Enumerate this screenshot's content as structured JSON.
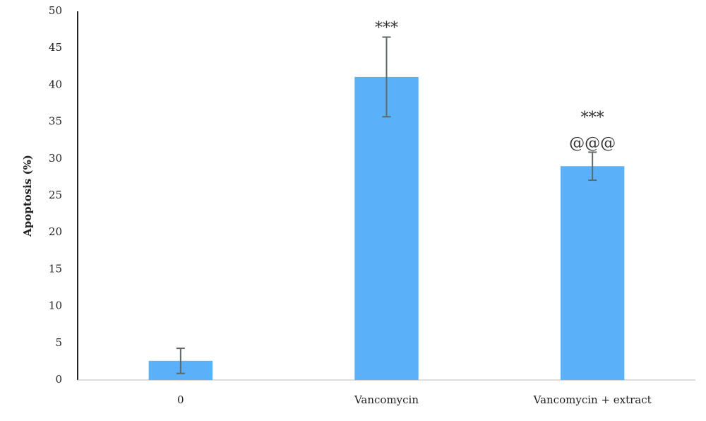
{
  "chart_data": {
    "type": "bar",
    "y_label": "Apoptosis (%)",
    "categories": [
      "0",
      "Vancomycin",
      "Vancomycin + extract"
    ],
    "values": [
      2.6,
      41.1,
      29.0
    ],
    "errors": [
      1.7,
      5.4,
      1.9
    ],
    "annotations": [
      [],
      [
        "***"
      ],
      [
        "***",
        "@@@"
      ]
    ],
    "color": "#5ab1f9",
    "error_color": "#5f6b66",
    "ylim": [
      0,
      50
    ],
    "yticks": [
      0,
      5,
      10,
      15,
      20,
      25,
      30,
      35,
      40,
      45,
      50
    ],
    "grid": false
  }
}
